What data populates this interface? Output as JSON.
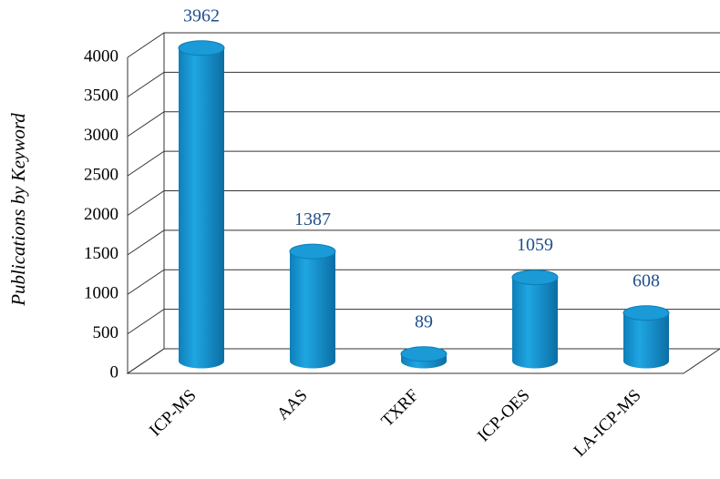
{
  "chart_data": {
    "type": "bar",
    "y_label": "Publications by Keyword",
    "categories": [
      "ICP-MS",
      "AAS",
      "TXRF",
      "ICP-OES",
      "LA-ICP-MS"
    ],
    "values": [
      3962,
      1387,
      89,
      1059,
      608
    ],
    "color": "#1a9ad6",
    "ylim": [
      0,
      4000
    ],
    "yticks": [
      0,
      500,
      1000,
      1500,
      2000,
      2500,
      3000,
      3500,
      4000
    ],
    "grid": true
  }
}
